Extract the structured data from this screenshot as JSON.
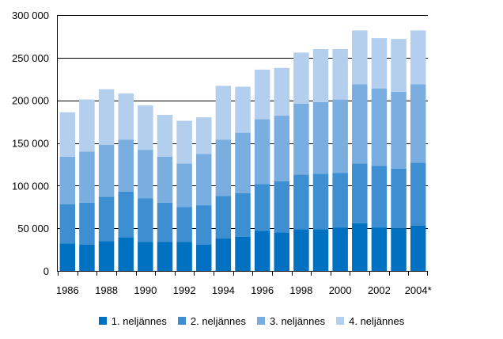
{
  "chart_data": {
    "type": "bar",
    "stacked": true,
    "categories": [
      "1986",
      "1987",
      "1988",
      "1989",
      "1990",
      "1991",
      "1992",
      "1993",
      "1994",
      "1995",
      "1996",
      "1997",
      "1998",
      "1999",
      "2000",
      "2001",
      "2002",
      "2003",
      "2004*"
    ],
    "x_tick_labels": [
      "1986",
      "1988",
      "1990",
      "1992",
      "1994",
      "1996",
      "1998",
      "2000",
      "2002",
      "2004*"
    ],
    "ylim": [
      0,
      300000
    ],
    "y_ticks": [
      0,
      50000,
      100000,
      150000,
      200000,
      250000,
      300000
    ],
    "y_tick_labels": [
      "0",
      "50 000",
      "100 000",
      "150 000",
      "200 000",
      "250 000",
      "300 000"
    ],
    "grid": "horizontal",
    "legend_position": "bottom",
    "series": [
      {
        "name": "1. neljännes",
        "color": "#0070c0",
        "values": [
          32000,
          31000,
          35000,
          39000,
          34000,
          34000,
          34000,
          31000,
          38000,
          40000,
          47000,
          45000,
          49000,
          49000,
          51000,
          56000,
          51000,
          50000,
          53000
        ]
      },
      {
        "name": "2. neljännes",
        "color": "#3d8fd1",
        "values": [
          46000,
          49000,
          52000,
          54000,
          51000,
          46000,
          41000,
          46000,
          50000,
          51000,
          55000,
          60000,
          64000,
          65000,
          64000,
          70000,
          72000,
          70000,
          74000
        ]
      },
      {
        "name": "3. neljännes",
        "color": "#7aaee0",
        "values": [
          56000,
          60000,
          61000,
          61000,
          57000,
          54000,
          51000,
          60000,
          66000,
          71000,
          76000,
          77000,
          83000,
          84000,
          86000,
          93000,
          91000,
          90000,
          92000
        ]
      },
      {
        "name": "4. neljännes",
        "color": "#b4cfed",
        "values": [
          52000,
          61000,
          65000,
          54000,
          52000,
          49000,
          50000,
          43000,
          63000,
          54000,
          58000,
          56000,
          60000,
          62000,
          59000,
          63000,
          59000,
          62000,
          63000
        ]
      }
    ]
  }
}
